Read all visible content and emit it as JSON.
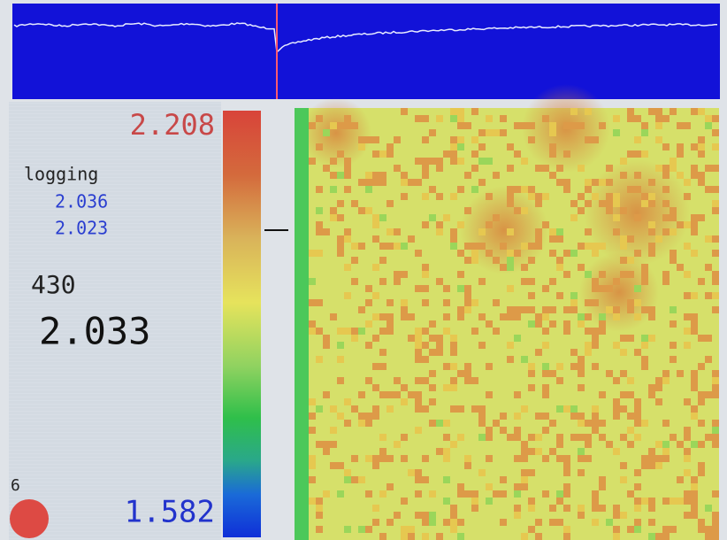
{
  "display": {
    "scale_max": "2.208",
    "mode": "logging",
    "logged_values": [
      "2.036",
      "2.023"
    ],
    "count": "430",
    "current_value": "2.033",
    "marker_number": "6",
    "scale_min": "1.582"
  }
}
